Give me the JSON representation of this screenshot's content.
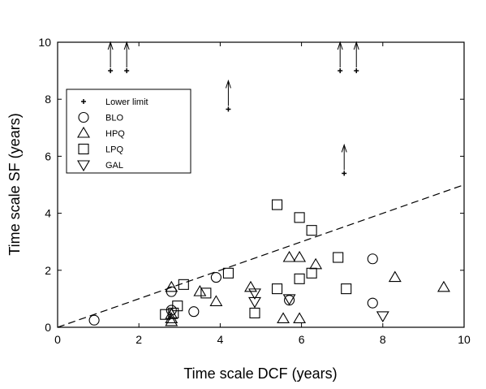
{
  "chart_data": {
    "type": "scatter",
    "xlabel": "Time scale DCF (years)",
    "ylabel": "Time scale SF (years)",
    "xlim": [
      0,
      10
    ],
    "ylim": [
      0,
      10
    ],
    "xticks": [
      0,
      2,
      4,
      6,
      8,
      10
    ],
    "yticks": [
      0,
      2,
      4,
      6,
      8,
      10
    ],
    "grid": false,
    "legend_position": "upper-left",
    "series": [
      {
        "name": "Lower limit",
        "marker": "plus",
        "arrow": "up",
        "points": [
          {
            "x": 1.3,
            "y": 9.0
          },
          {
            "x": 1.7,
            "y": 9.0
          },
          {
            "x": 4.2,
            "y": 7.65
          },
          {
            "x": 6.95,
            "y": 9.0
          },
          {
            "x": 7.35,
            "y": 9.0
          },
          {
            "x": 7.05,
            "y": 5.4
          }
        ]
      },
      {
        "name": "BLO",
        "marker": "circle",
        "points": [
          {
            "x": 0.9,
            "y": 0.25
          },
          {
            "x": 2.8,
            "y": 1.25
          },
          {
            "x": 2.8,
            "y": 0.6
          },
          {
            "x": 3.35,
            "y": 0.55
          },
          {
            "x": 3.9,
            "y": 1.75
          },
          {
            "x": 5.7,
            "y": 0.95
          },
          {
            "x": 7.75,
            "y": 2.4
          },
          {
            "x": 7.75,
            "y": 0.85
          }
        ]
      },
      {
        "name": "HPQ",
        "marker": "triangle-up",
        "points": [
          {
            "x": 2.8,
            "y": 1.4
          },
          {
            "x": 2.8,
            "y": 0.45
          },
          {
            "x": 2.8,
            "y": 0.3
          },
          {
            "x": 2.8,
            "y": 0.2
          },
          {
            "x": 3.5,
            "y": 1.25
          },
          {
            "x": 3.9,
            "y": 0.9
          },
          {
            "x": 4.75,
            "y": 1.4
          },
          {
            "x": 5.55,
            "y": 0.3
          },
          {
            "x": 5.7,
            "y": 2.45
          },
          {
            "x": 5.95,
            "y": 2.45
          },
          {
            "x": 5.95,
            "y": 0.3
          },
          {
            "x": 6.35,
            "y": 2.2
          },
          {
            "x": 8.3,
            "y": 1.75
          },
          {
            "x": 9.5,
            "y": 1.4
          }
        ]
      },
      {
        "name": "LPQ",
        "marker": "square",
        "points": [
          {
            "x": 2.65,
            "y": 0.45
          },
          {
            "x": 2.85,
            "y": 0.5
          },
          {
            "x": 2.95,
            "y": 0.75
          },
          {
            "x": 3.1,
            "y": 1.5
          },
          {
            "x": 3.65,
            "y": 1.2
          },
          {
            "x": 4.2,
            "y": 1.9
          },
          {
            "x": 4.85,
            "y": 0.5
          },
          {
            "x": 5.4,
            "y": 4.3
          },
          {
            "x": 5.4,
            "y": 1.35
          },
          {
            "x": 5.95,
            "y": 3.85
          },
          {
            "x": 5.95,
            "y": 1.7
          },
          {
            "x": 6.25,
            "y": 3.4
          },
          {
            "x": 6.25,
            "y": 1.9
          },
          {
            "x": 6.9,
            "y": 2.45
          },
          {
            "x": 7.1,
            "y": 1.35
          }
        ]
      },
      {
        "name": "GAL",
        "marker": "triangle-down",
        "points": [
          {
            "x": 4.85,
            "y": 1.2
          },
          {
            "x": 4.85,
            "y": 0.9
          },
          {
            "x": 5.7,
            "y": 1.0
          },
          {
            "x": 8.0,
            "y": 0.4
          }
        ]
      }
    ],
    "reference_line": {
      "style": "dashed",
      "x": [
        0,
        10
      ],
      "y": [
        0,
        5
      ]
    }
  }
}
